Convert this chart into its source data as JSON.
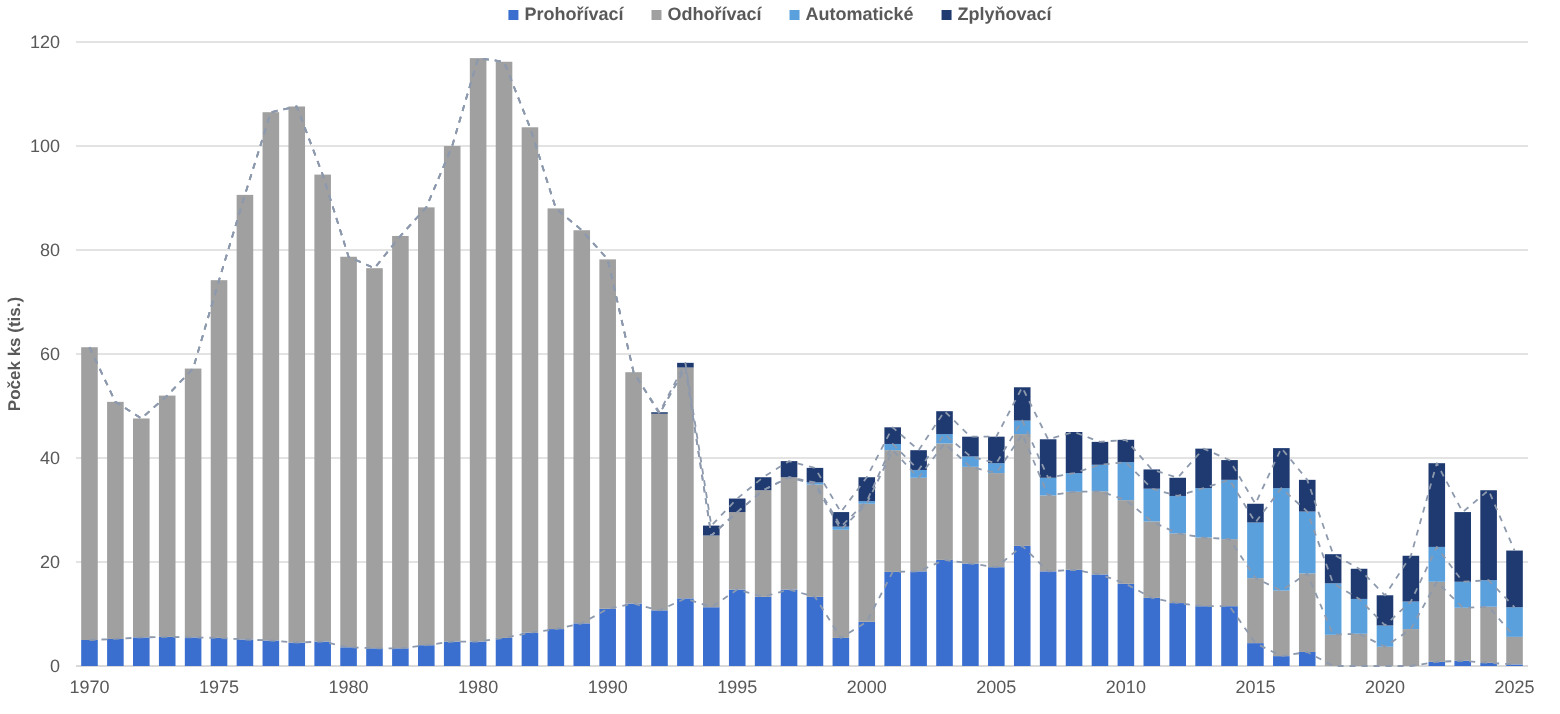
{
  "chart_data": {
    "type": "bar",
    "stacked": true,
    "ylabel": "Poček ks (tis.)",
    "legend": "top",
    "grid": "y",
    "categories": [
      "1970",
      null,
      null,
      null,
      null,
      "1975",
      null,
      null,
      null,
      null,
      "1980",
      null,
      null,
      null,
      null,
      "1980",
      null,
      null,
      null,
      null,
      "1990",
      null,
      null,
      null,
      null,
      "1995",
      null,
      null,
      null,
      null,
      "2000",
      null,
      null,
      null,
      null,
      "2005",
      null,
      null,
      null,
      null,
      "2010",
      null,
      null,
      null,
      null,
      "2015",
      null,
      null,
      null,
      null,
      "2020",
      null,
      null,
      null,
      null,
      "2025"
    ],
    "ylim": [
      0,
      120
    ],
    "yticks": [
      0,
      20,
      40,
      60,
      80,
      100,
      120
    ],
    "series": [
      {
        "name": "Prohořívací",
        "color": "#3a6fd0",
        "values": [
          5,
          5.2,
          5.5,
          5.6,
          5.5,
          5.4,
          5.1,
          4.9,
          4.5,
          4.7,
          3.6,
          3.4,
          3.4,
          4,
          4.7,
          4.7,
          5.4,
          6.4,
          7.1,
          8.2,
          11,
          12,
          10.7,
          13,
          11.3,
          14.7,
          13.3,
          14.7,
          13.3,
          5.4,
          8.5,
          18.1,
          18.2,
          20.4,
          19.7,
          19,
          23.1,
          18.2,
          18.5,
          17.6,
          15.8,
          13.1,
          12.1,
          11.5,
          11.5,
          4.4,
          1.9,
          2.7,
          0,
          0,
          0,
          0,
          0.8,
          1,
          0.6,
          0.3
        ]
      },
      {
        "name": "Odhořívací",
        "color": "#a0a0a0",
        "values": [
          56.3,
          45.6,
          42.1,
          46.4,
          51.7,
          68.8,
          85.5,
          101.6,
          103.1,
          89.8,
          75.1,
          73.1,
          79.3,
          84.2,
          95.3,
          112.2,
          110.8,
          97.2,
          80.9,
          75.6,
          67.2,
          44.5,
          37.8,
          44.4,
          13.8,
          14.9,
          20.5,
          21.6,
          21.6,
          20.8,
          22.7,
          23.4,
          18,
          22.4,
          18.6,
          18.1,
          21.5,
          14.6,
          15,
          16,
          16.1,
          14.7,
          13.4,
          13.2,
          12.9,
          12.5,
          12.6,
          15.1,
          6,
          6.2,
          3.7,
          7.1,
          15.4,
          10.2,
          10.8,
          5.3
        ]
      },
      {
        "name": "Automatické",
        "color": "#5aa0dc",
        "values": [
          0,
          0,
          0,
          0,
          0,
          0,
          0,
          0,
          0,
          0,
          0,
          0,
          0,
          0,
          0,
          0,
          0,
          0,
          0,
          0,
          0,
          0,
          0,
          0,
          0,
          0,
          0,
          0,
          0.4,
          0.6,
          0.5,
          1.2,
          1.5,
          1.8,
          2,
          1.9,
          2.6,
          3.4,
          3.6,
          5.1,
          7.3,
          6.3,
          7.2,
          9.5,
          11.4,
          10.7,
          19.7,
          11.9,
          9.9,
          6.7,
          4.1,
          5.3,
          6.7,
          5,
          5.1,
          5.7
        ]
      },
      {
        "name": "Zplyňovací",
        "color": "#1f3a70",
        "values": [
          0,
          0,
          0,
          0,
          0,
          0,
          0,
          0,
          0,
          0,
          0,
          0,
          0,
          0,
          0,
          0,
          0,
          0,
          0,
          0,
          0,
          0,
          0.3,
          0.9,
          1.9,
          2.6,
          2.5,
          3.1,
          2.8,
          2.8,
          4.6,
          3.2,
          3.8,
          4.4,
          3.8,
          5.1,
          6.4,
          7.4,
          7.9,
          4.4,
          4.3,
          3.7,
          3.5,
          7.6,
          3.8,
          3.6,
          7.7,
          6.1,
          5.6,
          5.8,
          5.8,
          8.8,
          16.1,
          13.4,
          17.3,
          10.9
        ]
      },
      {
        "type": "line",
        "color": "#8d99ad",
        "line_style": "dashed",
        "values": [
          5,
          5.2,
          5.5,
          5.6,
          5.5,
          5.4,
          5.1,
          4.9,
          4.5,
          4.7,
          3.6,
          3.4,
          3.4,
          4,
          4.7,
          4.7,
          5.4,
          6.4,
          7.1,
          8.2,
          11,
          12,
          10.7,
          13,
          11.3,
          14.7,
          13.3,
          14.7,
          13.3,
          5.4,
          8.5,
          18.1,
          18.2,
          20.4,
          19.7,
          19,
          23.1,
          18.2,
          18.5,
          17.6,
          15.8,
          13.1,
          12.1,
          11.5,
          11.5,
          4.4,
          1.9,
          2.7,
          0,
          0,
          0,
          0,
          0.8,
          1,
          0.6,
          0.3
        ]
      },
      {
        "type": "line",
        "color": "#8d99ad",
        "line_style": "dashed",
        "values": [
          61.3,
          50.8,
          47.6,
          52,
          57.2,
          74.2,
          90.6,
          106.5,
          107.6,
          94.5,
          78.7,
          76.5,
          82.7,
          88.2,
          100,
          116.9,
          116.2,
          103.6,
          88,
          83.8,
          78.2,
          56.5,
          48.5,
          57.4,
          25.1,
          29.6,
          33.8,
          36.3,
          34.9,
          26.2,
          31.2,
          41.5,
          36.2,
          42.8,
          38.3,
          37.1,
          44.6,
          32.8,
          33.5,
          33.6,
          31.9,
          27.8,
          25.5,
          24.7,
          24.4,
          16.9,
          14.5,
          17.8,
          6,
          6.2,
          3.7,
          7.1,
          16.2,
          11.2,
          11.4,
          5.6
        ]
      },
      {
        "type": "line",
        "color": "#8d99ad",
        "line_style": "dashed",
        "values": [
          61.3,
          50.8,
          47.6,
          52,
          57.2,
          74.2,
          90.6,
          106.5,
          107.6,
          94.5,
          78.7,
          76.5,
          82.7,
          88.2,
          100,
          116.9,
          116.2,
          103.6,
          88,
          83.8,
          78.2,
          56.5,
          48.5,
          57.4,
          25.1,
          29.6,
          33.8,
          36.3,
          35.3,
          26.8,
          31.7,
          42.7,
          37.7,
          44.6,
          40.3,
          39,
          47.2,
          36.2,
          37.1,
          38.7,
          39.2,
          34.1,
          32.7,
          34.2,
          35.8,
          27.6,
          34.2,
          29.7,
          15.9,
          12.9,
          7.8,
          12.4,
          22.9,
          16.2,
          16.5,
          11.3
        ]
      },
      {
        "type": "line",
        "color": "#8d99ad",
        "line_style": "dashed",
        "values": [
          61.3,
          50.8,
          47.6,
          52,
          57.2,
          74.2,
          90.6,
          106.5,
          107.6,
          94.5,
          78.7,
          76.5,
          82.7,
          88.2,
          100,
          116.9,
          116.2,
          103.6,
          88,
          83.8,
          78.2,
          56.5,
          48.8,
          58.3,
          27,
          32.2,
          36.3,
          39.4,
          38.1,
          29.6,
          36.3,
          45.9,
          41.5,
          49,
          44.1,
          44.1,
          53.6,
          43.6,
          45,
          43.1,
          43.5,
          37.8,
          36.2,
          41.8,
          39.6,
          31.2,
          41.9,
          35.8,
          21.5,
          18.7,
          13.6,
          21.2,
          39,
          29.6,
          33.8,
          22.2
        ]
      }
    ]
  }
}
